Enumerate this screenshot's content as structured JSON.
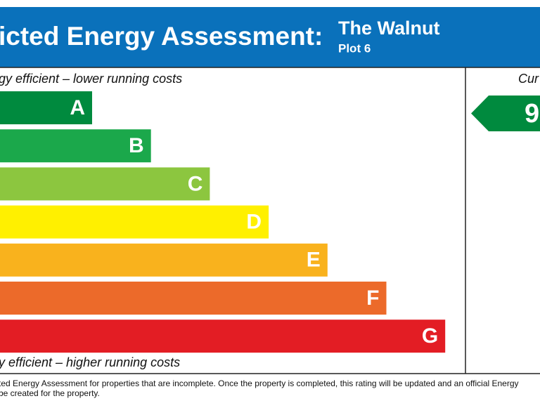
{
  "header": {
    "title": "icted Energy Assessment:",
    "property": "The Walnut",
    "plot": "Plot 6"
  },
  "scale": {
    "top_note": "gy efficient – lower running costs",
    "bottom_note": "y efficient – higher running costs",
    "bands": [
      {
        "letter": "A",
        "color": "#008a3e"
      },
      {
        "letter": "B",
        "color": "#1ba84b"
      },
      {
        "letter": "C",
        "color": "#8cc63f"
      },
      {
        "letter": "D",
        "color": "#fff000"
      },
      {
        "letter": "E",
        "color": "#f9b21d"
      },
      {
        "letter": "F",
        "color": "#ec6a2a"
      },
      {
        "letter": "G",
        "color": "#e31d24"
      }
    ]
  },
  "current": {
    "heading": "Cur",
    "rating": "9",
    "color": "#008a3e"
  },
  "footer": {
    "lines": [
      "ted Energy Assessment for properties that are incomplete. Once the property is completed, this rating will be updated and an official Energy",
      "be created for the property."
    ]
  }
}
